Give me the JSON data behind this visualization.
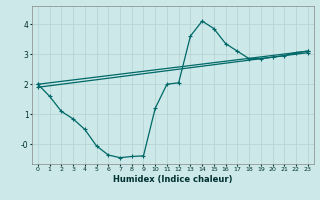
{
  "xlabel": "Humidex (Indice chaleur)",
  "bg_color": "#cce8e8",
  "grid_color": "#b8d4d4",
  "line_color": "#006868",
  "xlim": [
    -0.5,
    23.5
  ],
  "ylim": [
    -0.65,
    4.6
  ],
  "ytick_labels": [
    "-0",
    "1",
    "2",
    "3",
    "4"
  ],
  "ytick_vals": [
    0.0,
    1.0,
    2.0,
    3.0,
    4.0
  ],
  "xticks": [
    0,
    1,
    2,
    3,
    4,
    5,
    6,
    7,
    8,
    9,
    10,
    11,
    12,
    13,
    14,
    15,
    16,
    17,
    18,
    19,
    20,
    21,
    22,
    23
  ],
  "series_wavy": {
    "x": [
      0,
      1,
      2,
      3,
      4,
      5,
      6,
      7,
      8,
      9,
      10,
      11,
      12,
      13,
      14,
      15,
      16,
      17,
      18,
      19,
      20,
      21,
      22,
      23
    ],
    "y": [
      2.0,
      1.6,
      1.1,
      0.85,
      0.5,
      -0.05,
      -0.35,
      -0.44,
      -0.4,
      -0.38,
      1.2,
      2.0,
      2.05,
      3.6,
      4.1,
      3.85,
      3.35,
      3.1,
      2.85,
      2.85,
      2.9,
      2.95,
      3.05,
      3.1
    ]
  },
  "series_linear1": {
    "x": [
      0,
      23
    ],
    "y": [
      2.0,
      3.1
    ]
  },
  "series_linear2": {
    "x": [
      0,
      23
    ],
    "y": [
      1.9,
      3.05
    ]
  }
}
